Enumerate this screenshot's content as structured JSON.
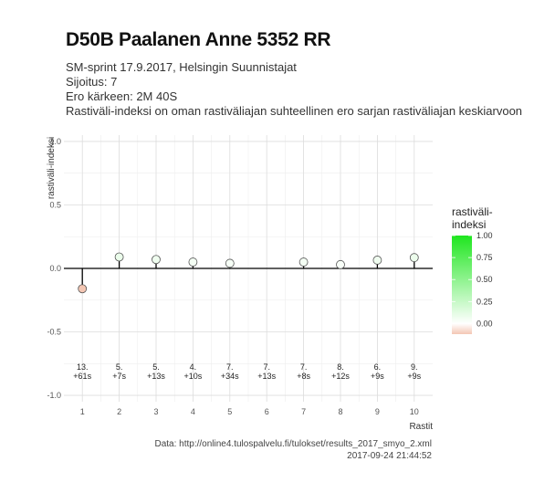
{
  "header": {
    "title": "D50B Paalanen Anne 5352 RR",
    "subtitle_lines": [
      "SM-sprint 17.9.2017, Helsingin Suunnistajat",
      "Sijoitus: 7",
      "Ero kärkeen: 2M 40S",
      "Rastiväli-indeksi on oman rastiväliajan suhteellinen ero sarjan rastiväliajan keskiarvoon"
    ]
  },
  "caption": {
    "source": "Data: http://online4.tulospalvelu.fi/tulokset/results_2017_smyo_2.xml",
    "timestamp": "2017-09-24 21:44:52"
  },
  "colors": {
    "negative": "#f4c7b4",
    "neutral": "#ffffff",
    "positive": "#1fe61f",
    "grid_major": "#dcdcdc",
    "grid_minor": "#eeeeee",
    "zero_line": "#000000"
  },
  "chart_data": {
    "type": "scatter",
    "title": "D50B Paalanen Anne 5352 RR",
    "xlabel": "Rastit",
    "ylabel": "rastiväli-indeksi",
    "xlim": [
      0.5,
      10.5
    ],
    "ylim": [
      -1.05,
      1.05
    ],
    "x_ticks": [
      1,
      2,
      3,
      4,
      5,
      6,
      7,
      8,
      9,
      10
    ],
    "y_ticks": [
      -1.0,
      -0.5,
      0.0,
      0.5,
      1.0
    ],
    "y_tick_labels": [
      "-1.0",
      "-0.5",
      "0.0",
      "0.5",
      "1.0"
    ],
    "grid": true,
    "points": [
      {
        "x": 1,
        "y": -0.16
      },
      {
        "x": 2,
        "y": 0.09
      },
      {
        "x": 3,
        "y": 0.07
      },
      {
        "x": 4,
        "y": 0.05
      },
      {
        "x": 5,
        "y": 0.04
      },
      {
        "x": 7,
        "y": 0.05
      },
      {
        "x": 8,
        "y": 0.03
      },
      {
        "x": 9,
        "y": 0.065
      },
      {
        "x": 10,
        "y": 0.085
      }
    ],
    "annotations": [
      {
        "x": 1,
        "rank": "13.",
        "diff": "+61s"
      },
      {
        "x": 2,
        "rank": "5.",
        "diff": "+7s"
      },
      {
        "x": 3,
        "rank": "5.",
        "diff": "+13s"
      },
      {
        "x": 4,
        "rank": "4.",
        "diff": "+10s"
      },
      {
        "x": 5,
        "rank": "7.",
        "diff": "+34s"
      },
      {
        "x": 6,
        "rank": "7.",
        "diff": "+13s"
      },
      {
        "x": 7,
        "rank": "7.",
        "diff": "+8s"
      },
      {
        "x": 8,
        "rank": "8.",
        "diff": "+12s"
      },
      {
        "x": 9,
        "rank": "6.",
        "diff": "+9s"
      },
      {
        "x": 10,
        "rank": "9.",
        "diff": "+9s"
      }
    ],
    "legend": {
      "title_lines": [
        "rastiväli-",
        "indeksi"
      ],
      "placement": "right",
      "min": -0.12,
      "max": 1.0,
      "ticks": [
        0.0,
        0.25,
        0.5,
        0.75,
        1.0
      ],
      "tick_labels": [
        "0.00",
        "0.25",
        "0.50",
        "0.75",
        "1.00"
      ]
    }
  }
}
